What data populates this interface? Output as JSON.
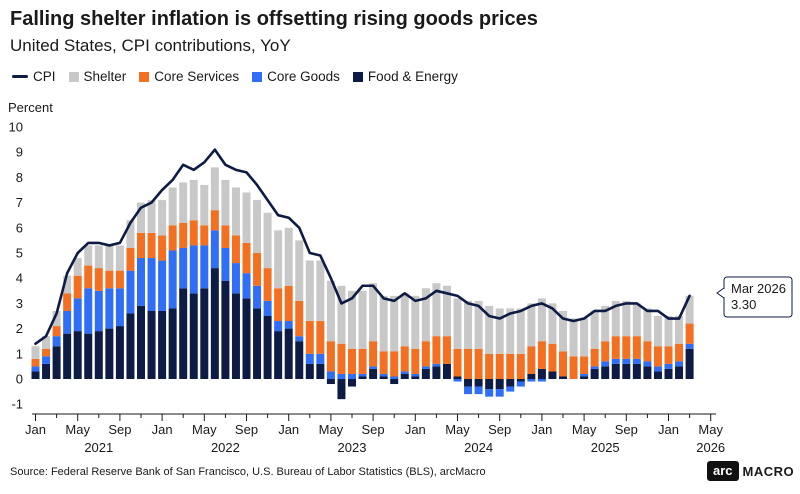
{
  "chart_data": {
    "type": "bar",
    "title": "Falling shelter inflation is offsetting rising goods prices",
    "subtitle": "United States, CPI contributions, YoY",
    "ylabel": "Percent",
    "xlabel": "",
    "ylim": [
      -1,
      10
    ],
    "yticks": [
      "-1",
      "0",
      "1",
      "2",
      "3",
      "4",
      "5",
      "6",
      "7",
      "8",
      "9",
      "10"
    ],
    "x_month_ticks": [
      "Jan",
      "May",
      "Sep",
      "Jan",
      "May",
      "Sep",
      "Jan",
      "May",
      "Sep",
      "Jan",
      "May",
      "Sep",
      "Jan",
      "May",
      "Sep",
      "Jan",
      "May"
    ],
    "x_year_labels": [
      "2021",
      "2022",
      "2023",
      "2024",
      "2025",
      "2026"
    ],
    "legend": [
      {
        "name": "CPI",
        "color": "#0d1b45",
        "kind": "line"
      },
      {
        "name": "Shelter",
        "color": "#c8c8c8",
        "kind": "bar"
      },
      {
        "name": "Core Services",
        "color": "#f36f21",
        "kind": "bar"
      },
      {
        "name": "Core Goods",
        "color": "#2f6ef5",
        "kind": "bar"
      },
      {
        "name": "Food & Energy",
        "color": "#0d1b45",
        "kind": "bar"
      }
    ],
    "periods": [
      "Jan 2021",
      "Feb 2021",
      "Mar 2021",
      "Apr 2021",
      "May 2021",
      "Jun 2021",
      "Jul 2021",
      "Aug 2021",
      "Sep 2021",
      "Oct 2021",
      "Nov 2021",
      "Dec 2021",
      "Jan 2022",
      "Feb 2022",
      "Mar 2022",
      "Apr 2022",
      "May 2022",
      "Jun 2022",
      "Jul 2022",
      "Aug 2022",
      "Sep 2022",
      "Oct 2022",
      "Nov 2022",
      "Dec 2022",
      "Jan 2023",
      "Feb 2023",
      "Mar 2023",
      "Apr 2023",
      "May 2023",
      "Jun 2023",
      "Jul 2023",
      "Aug 2023",
      "Sep 2023",
      "Oct 2023",
      "Nov 2023",
      "Dec 2023",
      "Jan 2024",
      "Feb 2024",
      "Mar 2024",
      "Apr 2024",
      "May 2024",
      "Jun 2024",
      "Jul 2024",
      "Aug 2024",
      "Sep 2024",
      "Oct 2024",
      "Nov 2024",
      "Dec 2024",
      "Jan 2025",
      "Feb 2025",
      "Mar 2025",
      "Apr 2025",
      "May 2025",
      "Jun 2025",
      "Jul 2025",
      "Aug 2025",
      "Sep 2025",
      "Oct 2025",
      "Nov 2025",
      "Dec 2025",
      "Jan 2026",
      "Feb 2026",
      "Mar 2026"
    ],
    "series": [
      {
        "name": "Food & Energy",
        "values": [
          0.3,
          0.6,
          1.3,
          1.8,
          1.9,
          1.8,
          1.9,
          2.0,
          2.1,
          2.6,
          2.9,
          2.7,
          2.7,
          2.8,
          3.6,
          3.4,
          3.6,
          4.4,
          3.9,
          3.4,
          3.2,
          2.8,
          2.5,
          1.9,
          2.0,
          1.5,
          0.6,
          0.6,
          -0.2,
          -0.8,
          -0.3,
          0.1,
          0.4,
          0.1,
          -0.2,
          0.2,
          0.1,
          0.4,
          0.5,
          0.6,
          0.1,
          -0.3,
          -0.3,
          -0.4,
          -0.4,
          -0.3,
          -0.1,
          0.2,
          0.4,
          0.3,
          0.1,
          0.0,
          0.1,
          0.4,
          0.5,
          0.6,
          0.6,
          0.6,
          0.5,
          0.3,
          0.4,
          0.5,
          1.2
        ]
      },
      {
        "name": "Core Goods",
        "values": [
          0.2,
          0.3,
          0.4,
          0.9,
          1.3,
          1.8,
          1.6,
          1.6,
          1.5,
          1.7,
          1.9,
          2.1,
          2.0,
          2.3,
          1.6,
          1.9,
          1.7,
          1.5,
          1.3,
          1.2,
          1.0,
          0.9,
          0.6,
          0.4,
          0.3,
          0.2,
          0.4,
          0.4,
          0.3,
          0.2,
          0.2,
          0.1,
          0.1,
          0.1,
          0.1,
          0.1,
          0.1,
          0.1,
          0.1,
          0.0,
          -0.1,
          -0.3,
          -0.3,
          -0.3,
          -0.3,
          -0.2,
          -0.2,
          -0.1,
          -0.1,
          0.0,
          0.0,
          0.0,
          0.1,
          0.1,
          0.2,
          0.2,
          0.2,
          0.2,
          0.2,
          0.2,
          0.2,
          0.2,
          0.2
        ]
      },
      {
        "name": "Core Services",
        "values": [
          0.3,
          0.3,
          0.4,
          0.7,
          0.9,
          0.9,
          0.9,
          0.7,
          0.7,
          0.9,
          1.0,
          1.0,
          1.0,
          1.0,
          1.0,
          1.0,
          0.8,
          0.8,
          0.9,
          1.1,
          1.2,
          1.3,
          1.3,
          1.3,
          1.4,
          1.4,
          1.3,
          1.3,
          1.2,
          1.2,
          1.0,
          1.0,
          1.0,
          0.9,
          1.0,
          1.0,
          1.0,
          1.0,
          1.1,
          1.1,
          1.1,
          1.2,
          1.2,
          1.0,
          1.0,
          1.0,
          1.0,
          1.1,
          1.1,
          1.1,
          1.0,
          0.9,
          0.7,
          0.7,
          0.8,
          0.9,
          0.9,
          0.9,
          0.8,
          0.8,
          0.7,
          0.7,
          0.8
        ]
      },
      {
        "name": "Shelter",
        "values": [
          0.5,
          0.5,
          0.6,
          0.7,
          0.7,
          0.8,
          0.9,
          1.0,
          1.0,
          1.1,
          1.2,
          1.3,
          1.4,
          1.5,
          1.6,
          1.6,
          1.6,
          1.7,
          1.8,
          1.9,
          2.0,
          2.1,
          2.2,
          2.3,
          2.3,
          2.4,
          2.4,
          2.4,
          2.4,
          2.3,
          2.3,
          2.3,
          2.3,
          2.2,
          2.2,
          2.1,
          2.1,
          2.1,
          2.1,
          2.0,
          2.0,
          1.9,
          1.9,
          1.9,
          1.8,
          1.8,
          1.8,
          1.7,
          1.7,
          1.6,
          1.6,
          1.5,
          1.5,
          1.5,
          1.4,
          1.4,
          1.4,
          1.3,
          1.3,
          1.2,
          1.2,
          1.1,
          1.1
        ]
      },
      {
        "name": "CPI",
        "values": [
          1.4,
          1.7,
          2.6,
          4.2,
          5.0,
          5.4,
          5.4,
          5.3,
          5.4,
          6.2,
          6.8,
          7.0,
          7.5,
          7.9,
          8.5,
          8.3,
          8.6,
          9.1,
          8.5,
          8.3,
          8.2,
          7.7,
          7.1,
          6.5,
          6.4,
          6.0,
          5.0,
          4.9,
          4.0,
          3.0,
          3.2,
          3.7,
          3.7,
          3.2,
          3.1,
          3.4,
          3.1,
          3.2,
          3.5,
          3.4,
          3.3,
          3.0,
          2.9,
          2.5,
          2.4,
          2.6,
          2.7,
          2.9,
          3.0,
          2.8,
          2.4,
          2.3,
          2.4,
          2.7,
          2.7,
          2.9,
          3.0,
          3.0,
          2.7,
          2.7,
          2.4,
          2.4,
          3.3
        ]
      }
    ],
    "annotation": {
      "label": "Mar 2026",
      "value": "3.30"
    },
    "grid": false
  },
  "source": "Source: Federal Reserve Bank of San Francisco, U.S. Bureau of Labor Statistics (BLS), arcMacro",
  "logo": {
    "box": "arc",
    "text": "MACRO"
  }
}
